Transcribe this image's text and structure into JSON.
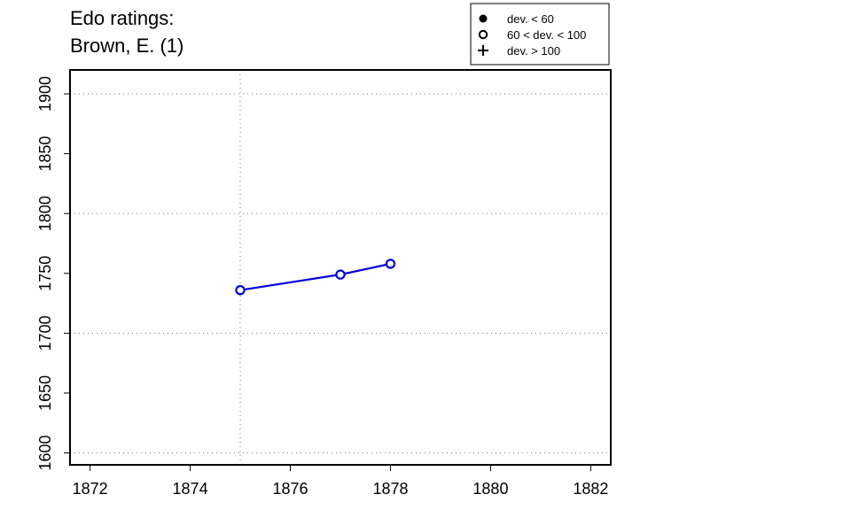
{
  "chart_data": {
    "type": "line",
    "title_lines": [
      "Edo ratings:",
      "Brown, E. (1)"
    ],
    "xlabel": "",
    "ylabel": "",
    "xlim": [
      1871.6,
      1882.4
    ],
    "ylim": [
      1590,
      1920
    ],
    "x_ticks": [
      1872,
      1874,
      1876,
      1878,
      1880,
      1882
    ],
    "y_ticks": [
      1600,
      1650,
      1700,
      1750,
      1800,
      1850,
      1900
    ],
    "grid": {
      "x": [
        1875
      ],
      "y": [
        1600,
        1700,
        1800,
        1900
      ],
      "style": "dotted"
    },
    "series": [
      {
        "color": "#0000dd",
        "marker": "open-circle",
        "x": [
          1875,
          1877,
          1878
        ],
        "y": [
          1736,
          1749,
          1758
        ]
      }
    ],
    "legend": {
      "placement": "top-right",
      "entries": [
        {
          "marker": "filled-circle",
          "label": "dev. < 60"
        },
        {
          "marker": "open-circle",
          "label": "60 < dev. < 100"
        },
        {
          "marker": "plus",
          "label": "dev. > 100"
        }
      ]
    }
  }
}
